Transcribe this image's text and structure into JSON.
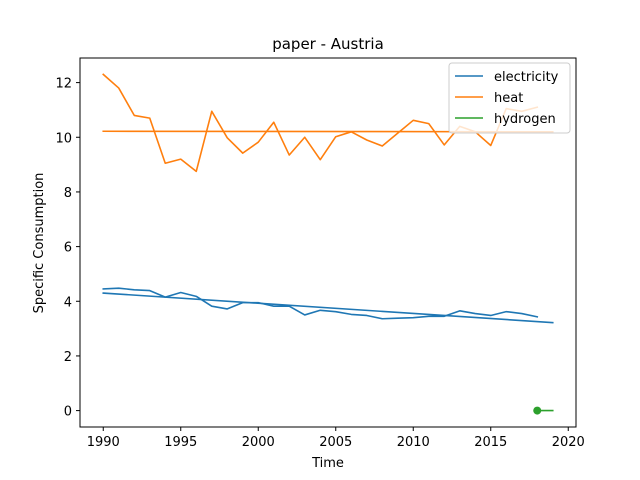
{
  "chart_data": {
    "type": "line",
    "title": "paper - Austria",
    "xlabel": "Time",
    "ylabel": "Specific Consumption",
    "xlim": [
      1988.5,
      2020.5
    ],
    "ylim": [
      -0.6,
      12.9
    ],
    "xticks": [
      1990,
      1995,
      2000,
      2005,
      2010,
      2015,
      2020
    ],
    "yticks": [
      0,
      2,
      4,
      6,
      8,
      10,
      12
    ],
    "grid": false,
    "legend_position": "top-right",
    "series": [
      {
        "name": "electricity",
        "color": "#1f77b4",
        "kind": "line",
        "x": [
          1990,
          1991,
          1992,
          1993,
          1994,
          1995,
          1996,
          1997,
          1998,
          1999,
          2000,
          2001,
          2002,
          2003,
          2004,
          2005,
          2006,
          2007,
          2008,
          2009,
          2010,
          2011,
          2012,
          2013,
          2014,
          2015,
          2016,
          2017,
          2018
        ],
        "y": [
          4.45,
          4.48,
          4.42,
          4.39,
          4.15,
          4.32,
          4.18,
          3.82,
          3.72,
          3.95,
          3.95,
          3.82,
          3.82,
          3.5,
          3.67,
          3.62,
          3.52,
          3.48,
          3.36,
          3.38,
          3.4,
          3.45,
          3.45,
          3.65,
          3.55,
          3.48,
          3.62,
          3.55,
          3.43
        ]
      },
      {
        "name": "electricity trend",
        "color": "#1f77b4",
        "kind": "line",
        "x": [
          1990,
          2019
        ],
        "y": [
          4.3,
          3.22
        ]
      },
      {
        "name": "heat",
        "color": "#ff7f0e",
        "kind": "line",
        "x": [
          1990,
          1991,
          1992,
          1993,
          1994,
          1995,
          1996,
          1997,
          1998,
          1999,
          2000,
          2001,
          2002,
          2003,
          2004,
          2005,
          2006,
          2007,
          2008,
          2009,
          2010,
          2011,
          2012,
          2013,
          2014,
          2015,
          2016,
          2017,
          2018
        ],
        "y": [
          12.3,
          11.8,
          10.8,
          10.7,
          9.05,
          9.2,
          8.75,
          10.95,
          9.98,
          9.42,
          9.82,
          10.55,
          9.35,
          10.0,
          9.18,
          10.02,
          10.2,
          9.9,
          9.68,
          10.15,
          10.62,
          10.5,
          9.72,
          10.4,
          10.2,
          9.7,
          11.05,
          10.95,
          11.1
        ]
      },
      {
        "name": "heat trend",
        "color": "#ff7f0e",
        "kind": "line",
        "x": [
          1990,
          2019
        ],
        "y": [
          10.22,
          10.2
        ]
      },
      {
        "name": "hydrogen",
        "color": "#2ca02c",
        "kind": "line",
        "x": [
          2018,
          2019
        ],
        "y": [
          0.0,
          0.0
        ],
        "marker_x": [
          2018
        ],
        "marker_y": [
          0.0
        ]
      }
    ],
    "legend": [
      {
        "label": "electricity",
        "color": "#1f77b4"
      },
      {
        "label": "heat",
        "color": "#ff7f0e"
      },
      {
        "label": "hydrogen",
        "color": "#2ca02c"
      }
    ]
  }
}
